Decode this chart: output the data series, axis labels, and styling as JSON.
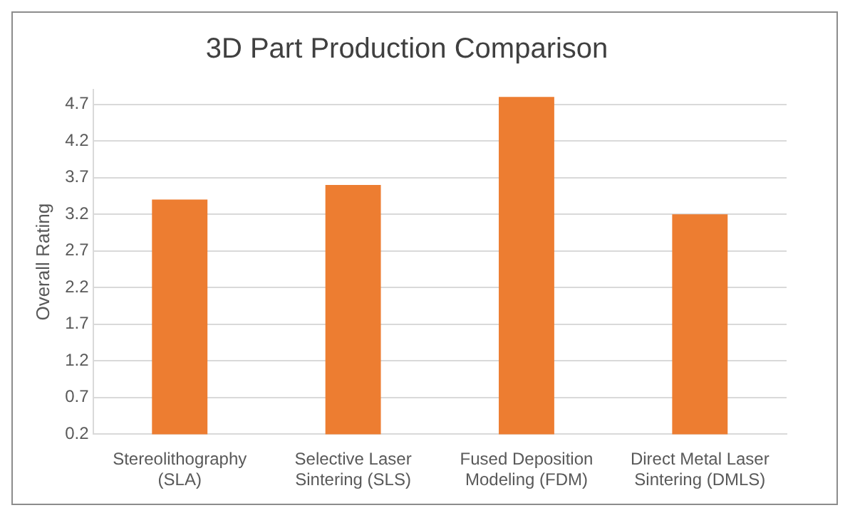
{
  "chart_data": {
    "type": "bar",
    "title": "3D Part Production Comparison",
    "ylabel": "Overall Rating",
    "categories": [
      "Stereolithography (SLA)",
      "Selective Laser Sintering (SLS)",
      "Fused Deposition Modeling (FDM)",
      "Direct Metal Laser Sintering (DMLS)"
    ],
    "values": [
      3.4,
      3.6,
      4.8,
      3.2
    ],
    "color": "#ed7d31",
    "ylim": [
      0.2,
      4.9
    ],
    "yticks": [
      0.2,
      0.7,
      1.2,
      1.7,
      2.2,
      2.7,
      3.2,
      3.7,
      4.2,
      4.7
    ],
    "grid": "y",
    "legend": false
  }
}
